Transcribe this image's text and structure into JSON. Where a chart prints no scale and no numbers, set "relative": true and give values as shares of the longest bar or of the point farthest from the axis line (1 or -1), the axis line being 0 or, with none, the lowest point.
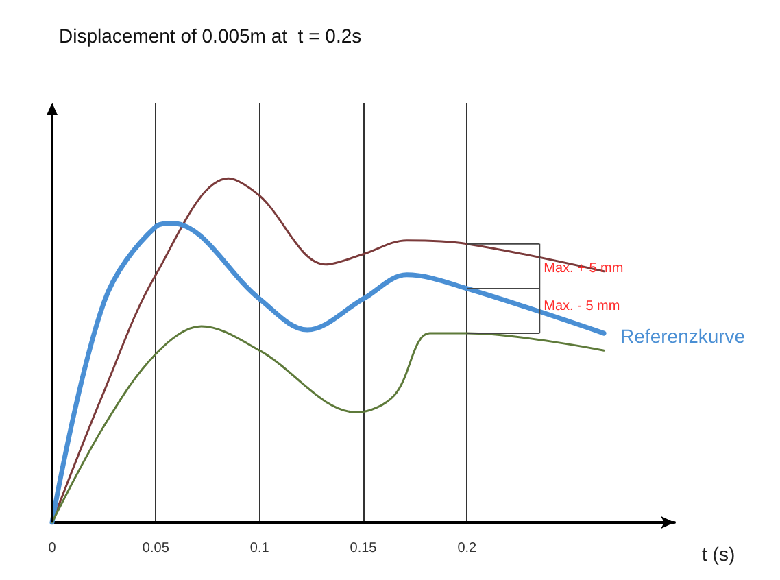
{
  "chart_data": {
    "type": "line",
    "title": "Displacement of 0.005m at  t = 0.2s",
    "xlabel": "t (s)",
    "relative": true,
    "xlim": [
      0,
      0.3
    ],
    "xticks": [
      0,
      0.05,
      0.1,
      0.15,
      0.2
    ],
    "grid": "x",
    "legend": false,
    "marker": "none",
    "series": [
      {
        "color": "#7b3b3b",
        "x": [
          0,
          0.025,
          0.05,
          0.085,
          0.1,
          0.132,
          0.15,
          0.171,
          0.2,
          0.266
        ],
        "values": [
          0,
          0.38,
          0.72,
          1.0,
          0.95,
          0.75,
          0.78,
          0.82,
          0.81,
          0.73
        ]
      },
      {
        "name": "Referenzkurve",
        "color": "#4a8fd4",
        "x": [
          0,
          0.025,
          0.05,
          0.058,
          0.1,
          0.123,
          0.15,
          0.171,
          0.2,
          0.266
        ],
        "values": [
          0,
          0.64,
          0.86,
          0.87,
          0.65,
          0.56,
          0.65,
          0.72,
          0.68,
          0.55
        ]
      },
      {
        "color": "#5e7a3a",
        "x": [
          0,
          0.025,
          0.05,
          0.072,
          0.1,
          0.147,
          0.165,
          0.182,
          0.2,
          0.266
        ],
        "values": [
          0,
          0.28,
          0.49,
          0.57,
          0.5,
          0.32,
          0.37,
          0.55,
          0.55,
          0.5
        ]
      }
    ],
    "annotations": [
      {
        "text": "Max. + 5 mm",
        "x": 0.235,
        "y": 0.75
      },
      {
        "text": "Max. - 5 mm",
        "x": 0.235,
        "y": 0.64
      }
    ]
  }
}
